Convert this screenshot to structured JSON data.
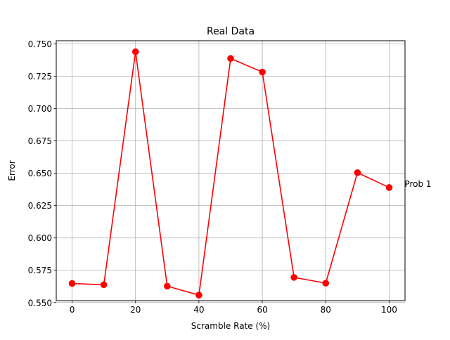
{
  "chart_data": {
    "type": "line",
    "title": "Real Data",
    "xlabel": "Scramble Rate (%)",
    "ylabel": "Error",
    "xlim": [
      -5,
      105
    ],
    "ylim": [
      0.5515,
      0.7525
    ],
    "grid": true,
    "xticks": [
      0,
      20,
      40,
      60,
      80,
      100
    ],
    "yticks": [
      0.55,
      0.575,
      0.6,
      0.625,
      0.65,
      0.675,
      0.7,
      0.725,
      0.75
    ],
    "series": [
      {
        "name": "",
        "color": "#ff0000",
        "x": [
          0,
          10,
          20,
          30,
          40,
          50,
          60,
          70,
          80,
          90,
          100
        ],
        "values": [
          0.5648,
          0.5638,
          0.744,
          0.5627,
          0.5558,
          0.7388,
          0.7283,
          0.5695,
          0.565,
          0.6505,
          0.639
        ]
      }
    ],
    "annotations": [
      {
        "text": "Prob 1",
        "x": 100,
        "y": 0.639
      }
    ]
  }
}
